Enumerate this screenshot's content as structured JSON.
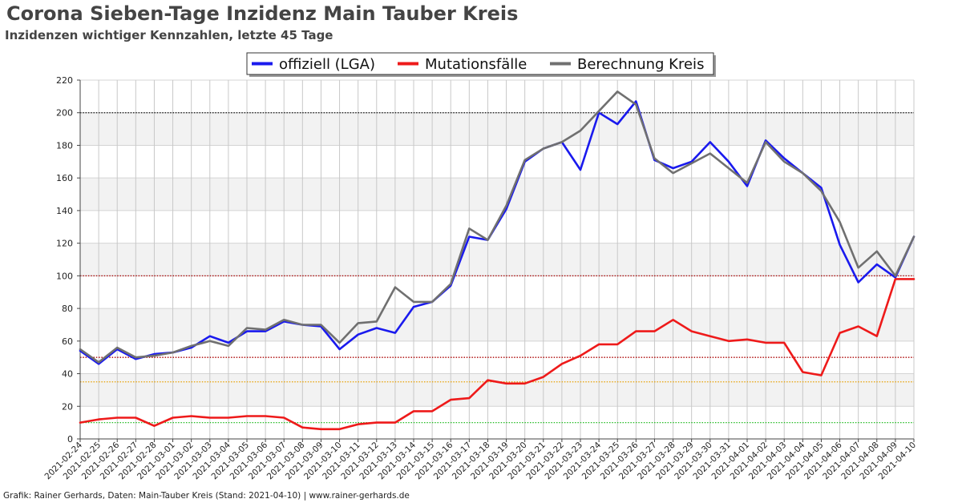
{
  "header": {
    "title": "Corona Sieben-Tage Inzidenz Main Tauber Kreis",
    "subtitle": "Inzidenzen wichtiger Kennzahlen, letzte 45 Tage"
  },
  "footer": {
    "credit": "Grafik: Rainer Gerhards, Daten: Main-Tauber Kreis (Stand: 2021-04-10) | www.rainer-gerhards.de"
  },
  "chart_data": {
    "type": "line",
    "title": "Corona Sieben-Tage Inzidenz Main Tauber Kreis",
    "subtitle": "Inzidenzen wichtiger Kennzahlen, letzte 45 Tage",
    "xlabel": "",
    "ylabel": "",
    "ylim": [
      0,
      220
    ],
    "y_ticks": [
      0,
      20,
      40,
      60,
      80,
      100,
      120,
      140,
      160,
      180,
      200,
      220
    ],
    "grid": true,
    "legend_position": "top-center",
    "categories": [
      "2021-02-24",
      "2021-02-25",
      "2021-02-26",
      "2021-02-27",
      "2021-02-28",
      "2021-03-01",
      "2021-03-02",
      "2021-03-03",
      "2021-03-04",
      "2021-03-05",
      "2021-03-06",
      "2021-03-07",
      "2021-03-08",
      "2021-03-09",
      "2021-03-10",
      "2021-03-11",
      "2021-03-12",
      "2021-03-13",
      "2021-03-14",
      "2021-03-15",
      "2021-03-16",
      "2021-03-17",
      "2021-03-18",
      "2021-03-19",
      "2021-03-20",
      "2021-03-21",
      "2021-03-22",
      "2021-03-23",
      "2021-03-24",
      "2021-03-25",
      "2021-03-26",
      "2021-03-27",
      "2021-03-28",
      "2021-03-29",
      "2021-03-30",
      "2021-03-31",
      "2021-04-01",
      "2021-04-02",
      "2021-04-03",
      "2021-04-04",
      "2021-04-05",
      "2021-04-06",
      "2021-04-07",
      "2021-04-08",
      "2021-04-09",
      "2021-04-10"
    ],
    "series": [
      {
        "name": "offiziell (LGA)",
        "color": "#1a1aee",
        "values": [
          54,
          46,
          55,
          49,
          52,
          53,
          56,
          63,
          59,
          66,
          66,
          72,
          70,
          69,
          55,
          64,
          68,
          65,
          81,
          84,
          94,
          124,
          122,
          141,
          170,
          178,
          182,
          165,
          200,
          193,
          207,
          171,
          166,
          170,
          182,
          170,
          155,
          183,
          172,
          163,
          154,
          119,
          96,
          107,
          99,
          124
        ]
      },
      {
        "name": "Mutationsfälle",
        "color": "#ee1a1a",
        "values": [
          10,
          12,
          13,
          13,
          8,
          13,
          14,
          13,
          13,
          14,
          14,
          13,
          7,
          6,
          6,
          9,
          10,
          10,
          17,
          17,
          24,
          25,
          36,
          34,
          34,
          38,
          46,
          51,
          58,
          58,
          66,
          66,
          73,
          66,
          63,
          60,
          61,
          59,
          59,
          41,
          39,
          65,
          69,
          63,
          98,
          98
        ]
      },
      {
        "name": "Berechnung Kreis",
        "color": "#707070",
        "values": [
          55,
          47,
          56,
          50,
          51,
          53,
          57,
          60,
          57,
          68,
          67,
          73,
          70,
          70,
          59,
          71,
          72,
          93,
          84,
          84,
          95,
          129,
          122,
          143,
          171,
          178,
          182,
          189,
          201,
          213,
          205,
          172,
          163,
          169,
          175,
          166,
          157,
          182,
          170,
          163,
          152,
          133,
          105,
          115,
          100,
          124
        ]
      }
    ],
    "reference_lines": [
      {
        "value": 200,
        "color": "#111111"
      },
      {
        "value": 100,
        "color": "#aa0000"
      },
      {
        "value": 50,
        "color": "#aa0000"
      },
      {
        "value": 35,
        "color": "#e8a000"
      },
      {
        "value": 10,
        "color": "#22bb22"
      }
    ]
  }
}
